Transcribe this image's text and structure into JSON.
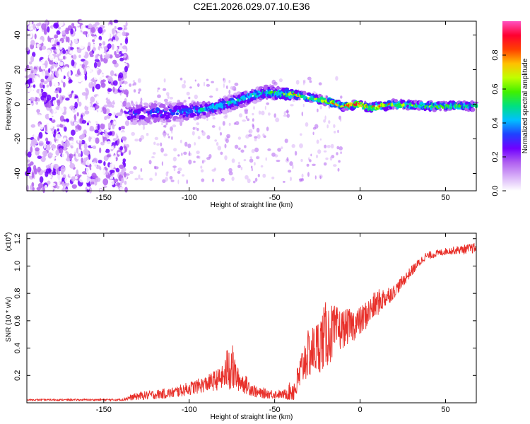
{
  "title": "C2E1.2026.029.07.10.E36",
  "chart_data": [
    {
      "type": "heatmap",
      "name": "spectrogram",
      "xlabel": "Height of straight line (km)",
      "ylabel": "Frequency (Hz)",
      "xlim": [
        -195,
        68
      ],
      "ylim": [
        -50,
        48
      ],
      "xticks": [
        -150,
        -100,
        -50,
        0,
        50
      ],
      "yticks": [
        -40,
        -20,
        0,
        20,
        40
      ],
      "colorbar": {
        "label": "Normalized spectral amplitude",
        "range": [
          0.0,
          1.0
        ],
        "ticks": [
          0.0,
          0.2,
          0.4,
          0.6,
          0.8
        ],
        "colors": [
          "#ffffff",
          "#d8b0f8",
          "#b060f0",
          "#7000ff",
          "#2040ff",
          "#00c0ff",
          "#00e080",
          "#40f000",
          "#c0ff00",
          "#ffc000",
          "#ff4000",
          "#ff0030",
          "#ff50c0"
        ]
      },
      "ridge": [
        {
          "x": -135,
          "freq": -6,
          "amp": 0.33
        },
        {
          "x": -120,
          "freq": -5,
          "amp": 0.38
        },
        {
          "x": -100,
          "freq": -4,
          "amp": 0.42
        },
        {
          "x": -90,
          "freq": -3,
          "amp": 0.48
        },
        {
          "x": -75,
          "freq": 1,
          "amp": 0.5
        },
        {
          "x": -65,
          "freq": 4,
          "amp": 0.52
        },
        {
          "x": -55,
          "freq": 7,
          "amp": 0.55
        },
        {
          "x": -45,
          "freq": 6,
          "amp": 0.6
        },
        {
          "x": -40,
          "freq": 6,
          "amp": 0.82
        },
        {
          "x": -30,
          "freq": 4,
          "amp": 0.72
        },
        {
          "x": -20,
          "freq": 2,
          "amp": 0.75
        },
        {
          "x": -10,
          "freq": -1,
          "amp": 0.8
        },
        {
          "x": 0,
          "freq": 0,
          "amp": 0.95
        },
        {
          "x": 5,
          "freq": -2,
          "amp": 0.9
        },
        {
          "x": 20,
          "freq": 0,
          "amp": 0.72
        },
        {
          "x": 40,
          "freq": -1,
          "amp": 0.7
        },
        {
          "x": 68,
          "freq": -1,
          "amp": 0.66
        }
      ]
    },
    {
      "type": "line",
      "name": "snr",
      "xlabel": "Height of straight line (km)",
      "ylabel": "SNR (10 * v/v)",
      "yscale_label": "(x10",
      "yscale_exp": "4",
      "xlim": [
        -195,
        68
      ],
      "ylim": [
        0,
        1.24
      ],
      "xticks": [
        -150,
        -100,
        -50,
        0,
        50
      ],
      "yticks": [
        0.2,
        0.4,
        0.6,
        0.8,
        1.0,
        1.2
      ],
      "color": "#e8302a",
      "trend": [
        {
          "x": -195,
          "base": 0.02,
          "noise": 0.01
        },
        {
          "x": -140,
          "base": 0.02,
          "noise": 0.015
        },
        {
          "x": -130,
          "base": 0.04,
          "noise": 0.06
        },
        {
          "x": -110,
          "base": 0.06,
          "noise": 0.08
        },
        {
          "x": -90,
          "base": 0.12,
          "noise": 0.12
        },
        {
          "x": -80,
          "base": 0.16,
          "noise": 0.18
        },
        {
          "x": -76,
          "base": 0.22,
          "noise": 0.45
        },
        {
          "x": -72,
          "base": 0.15,
          "noise": 0.18
        },
        {
          "x": -60,
          "base": 0.06,
          "noise": 0.08
        },
        {
          "x": -45,
          "base": 0.05,
          "noise": 0.06
        },
        {
          "x": -38,
          "base": 0.07,
          "noise": 0.2
        },
        {
          "x": -32,
          "base": 0.28,
          "noise": 0.35
        },
        {
          "x": -25,
          "base": 0.35,
          "noise": 0.4
        },
        {
          "x": -20,
          "base": 0.42,
          "noise": 0.5
        },
        {
          "x": -10,
          "base": 0.5,
          "noise": 0.28
        },
        {
          "x": 0,
          "base": 0.56,
          "noise": 0.22
        },
        {
          "x": 10,
          "base": 0.7,
          "noise": 0.2
        },
        {
          "x": 20,
          "base": 0.8,
          "noise": 0.1
        },
        {
          "x": 30,
          "base": 0.95,
          "noise": 0.08
        },
        {
          "x": 38,
          "base": 1.06,
          "noise": 0.06
        },
        {
          "x": 50,
          "base": 1.1,
          "noise": 0.05
        },
        {
          "x": 68,
          "base": 1.12,
          "noise": 0.08
        }
      ]
    }
  ]
}
